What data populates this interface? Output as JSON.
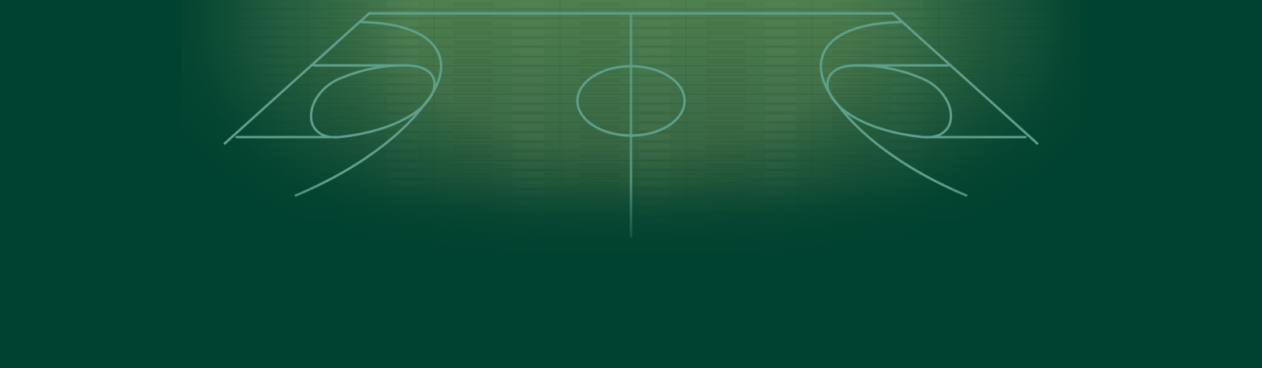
{
  "scene": {
    "subject": "basketball-court-background",
    "colors": {
      "background": "#004230",
      "floor_light": "#4b7d4d",
      "floor_dark": "#2f5d3c",
      "court_lines": "#5fa08c"
    }
  }
}
